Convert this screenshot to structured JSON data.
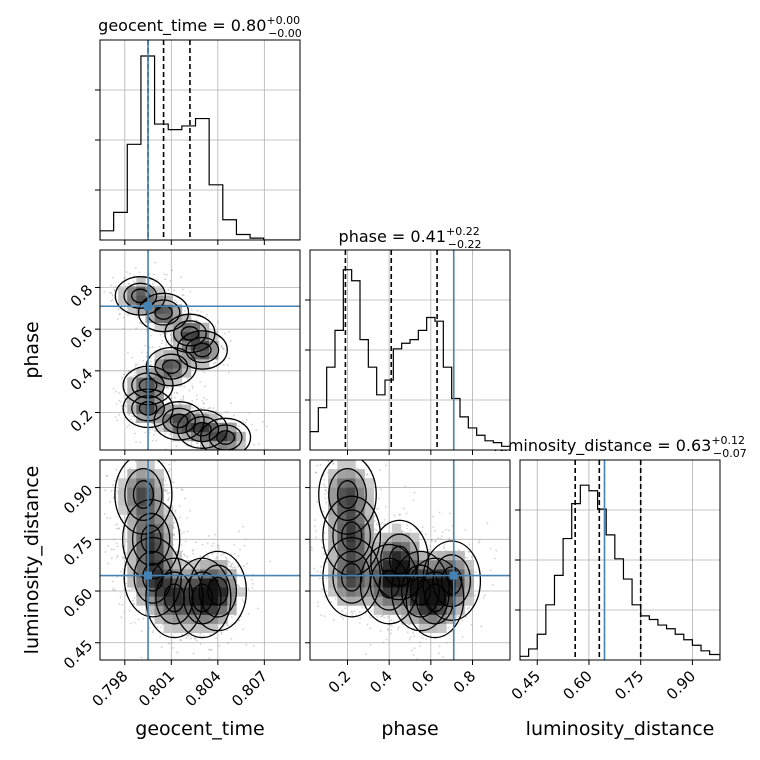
{
  "chart_data": {
    "type": "corner",
    "parameters": [
      "geocent_time",
      "phase",
      "luminosity_distance"
    ],
    "truths": {
      "geocent_time": 0.7995,
      "phase": 0.71,
      "luminosity_distance": 0.645
    },
    "titles": [
      {
        "param": "geocent_time",
        "prefix": "geocent_time = ",
        "median": "0.80",
        "plus": "+0.00",
        "minus": "−0.00"
      },
      {
        "param": "phase",
        "prefix": "phase = ",
        "median": "0.41",
        "plus": "+0.22",
        "minus": "−0.22"
      },
      {
        "param": "luminosity_distance",
        "prefix": "luminosity_distance = ",
        "median": "0.63",
        "plus": "+0.12",
        "minus": "−0.07"
      }
    ],
    "ranges": {
      "geocent_time": [
        0.7964,
        0.8093
      ],
      "phase": [
        0.02,
        0.98
      ],
      "luminosity_distance": [
        0.4,
        0.98
      ]
    },
    "ticks": {
      "geocent_time": [
        0.798,
        0.801,
        0.804,
        0.807
      ],
      "phase": [
        0.2,
        0.4,
        0.6,
        0.8
      ],
      "luminosity_distance": [
        0.45,
        0.6,
        0.75,
        0.9
      ]
    },
    "tick_labels": {
      "geocent_time": [
        "0.798",
        "0.801",
        "0.804",
        "0.807"
      ],
      "phase": [
        "0.2",
        "0.4",
        "0.6",
        "0.8"
      ],
      "luminosity_distance": [
        "0.45",
        "0.60",
        "0.75",
        "0.90"
      ]
    },
    "quantiles": {
      "geocent_time": [
        0.7995,
        0.8005,
        0.8022
      ],
      "phase": [
        0.19,
        0.41,
        0.63
      ],
      "luminosity_distance": [
        0.56,
        0.63,
        0.75
      ]
    },
    "hist_1d": {
      "geocent_time": {
        "edges": [
          0.7964,
          0.79728,
          0.79816,
          0.79904,
          0.79992,
          0.8008,
          0.80168,
          0.80256,
          0.80344,
          0.80432,
          0.8052,
          0.80608,
          0.80696,
          0.80784,
          0.8093
        ],
        "heights": [
          0.05,
          0.15,
          0.52,
          1.0,
          0.63,
          0.6,
          0.62,
          0.66,
          0.3,
          0.11,
          0.03,
          0.01,
          0.0,
          0.0
        ]
      },
      "phase": {
        "edges": [
          0.02,
          0.06,
          0.1,
          0.14,
          0.18,
          0.22,
          0.26,
          0.3,
          0.34,
          0.38,
          0.42,
          0.46,
          0.5,
          0.54,
          0.58,
          0.62,
          0.66,
          0.7,
          0.74,
          0.78,
          0.82,
          0.86,
          0.9,
          0.94,
          0.98
        ],
        "heights": [
          0.1,
          0.23,
          0.45,
          0.65,
          0.98,
          0.92,
          0.6,
          0.45,
          0.3,
          0.38,
          0.55,
          0.58,
          0.6,
          0.65,
          0.72,
          0.7,
          0.45,
          0.28,
          0.18,
          0.12,
          0.08,
          0.05,
          0.04,
          0.02
        ]
      },
      "luminosity_distance": {
        "edges": [
          0.4,
          0.425,
          0.45,
          0.475,
          0.5,
          0.525,
          0.55,
          0.575,
          0.6,
          0.625,
          0.65,
          0.675,
          0.7,
          0.725,
          0.75,
          0.775,
          0.8,
          0.825,
          0.85,
          0.875,
          0.9,
          0.925,
          0.95,
          0.98
        ],
        "heights": [
          0.02,
          0.06,
          0.14,
          0.3,
          0.46,
          0.66,
          0.85,
          0.95,
          0.92,
          0.82,
          0.68,
          0.55,
          0.44,
          0.3,
          0.24,
          0.22,
          0.19,
          0.17,
          0.14,
          0.11,
          0.08,
          0.05,
          0.03
        ]
      }
    },
    "hist_2d": [
      {
        "x": "geocent_time",
        "y": "phase",
        "centers": [
          [
            0.799,
            0.76
          ],
          [
            0.8005,
            0.68
          ],
          [
            0.8022,
            0.58
          ],
          [
            0.803,
            0.5
          ],
          [
            0.801,
            0.42
          ],
          [
            0.7995,
            0.33
          ],
          [
            0.7995,
            0.22
          ],
          [
            0.8015,
            0.16
          ],
          [
            0.803,
            0.12
          ],
          [
            0.8045,
            0.08
          ]
        ],
        "spread": [
          0.0007,
          0.04
        ]
      },
      {
        "x": "geocent_time",
        "y": "luminosity_distance",
        "centers": [
          [
            0.7992,
            0.88
          ],
          [
            0.7997,
            0.75
          ],
          [
            0.7998,
            0.64
          ],
          [
            0.8012,
            0.58
          ],
          [
            0.803,
            0.58
          ],
          [
            0.804,
            0.6
          ]
        ],
        "spread": [
          0.0008,
          0.05
        ]
      },
      {
        "x": "phase",
        "y": "luminosity_distance",
        "centers": [
          [
            0.2,
            0.88
          ],
          [
            0.22,
            0.76
          ],
          [
            0.22,
            0.64
          ],
          [
            0.4,
            0.62
          ],
          [
            0.55,
            0.6
          ],
          [
            0.62,
            0.58
          ],
          [
            0.7,
            0.63
          ],
          [
            0.45,
            0.69
          ]
        ],
        "spread": [
          0.06,
          0.05
        ]
      }
    ]
  }
}
